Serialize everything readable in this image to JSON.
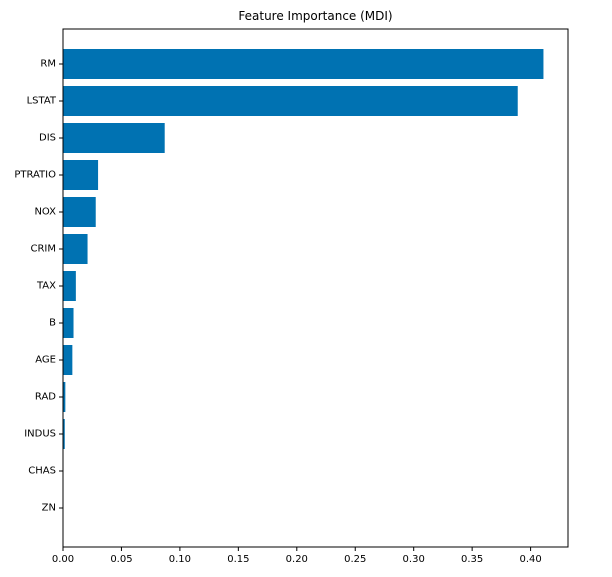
{
  "chart_data": {
    "type": "bar",
    "orientation": "horizontal",
    "title": "Feature Importance (MDI)",
    "xlabel": "",
    "ylabel": "",
    "categories": [
      "RM",
      "LSTAT",
      "DIS",
      "PTRATIO",
      "NOX",
      "CRIM",
      "TAX",
      "B",
      "AGE",
      "RAD",
      "INDUS",
      "CHAS",
      "ZN"
    ],
    "values": [
      0.411,
      0.389,
      0.087,
      0.03,
      0.028,
      0.021,
      0.011,
      0.009,
      0.008,
      0.002,
      0.0015,
      0.0002,
      0.0001
    ],
    "xlim": [
      0,
      0.432
    ],
    "xticks": [
      "0.00",
      "0.05",
      "0.10",
      "0.15",
      "0.20",
      "0.25",
      "0.30",
      "0.35",
      "0.40"
    ],
    "xtick_values": [
      0,
      0.05,
      0.1,
      0.15,
      0.2,
      0.25,
      0.3,
      0.35,
      0.4
    ],
    "grid": false,
    "bar_color": "#0072b2"
  }
}
